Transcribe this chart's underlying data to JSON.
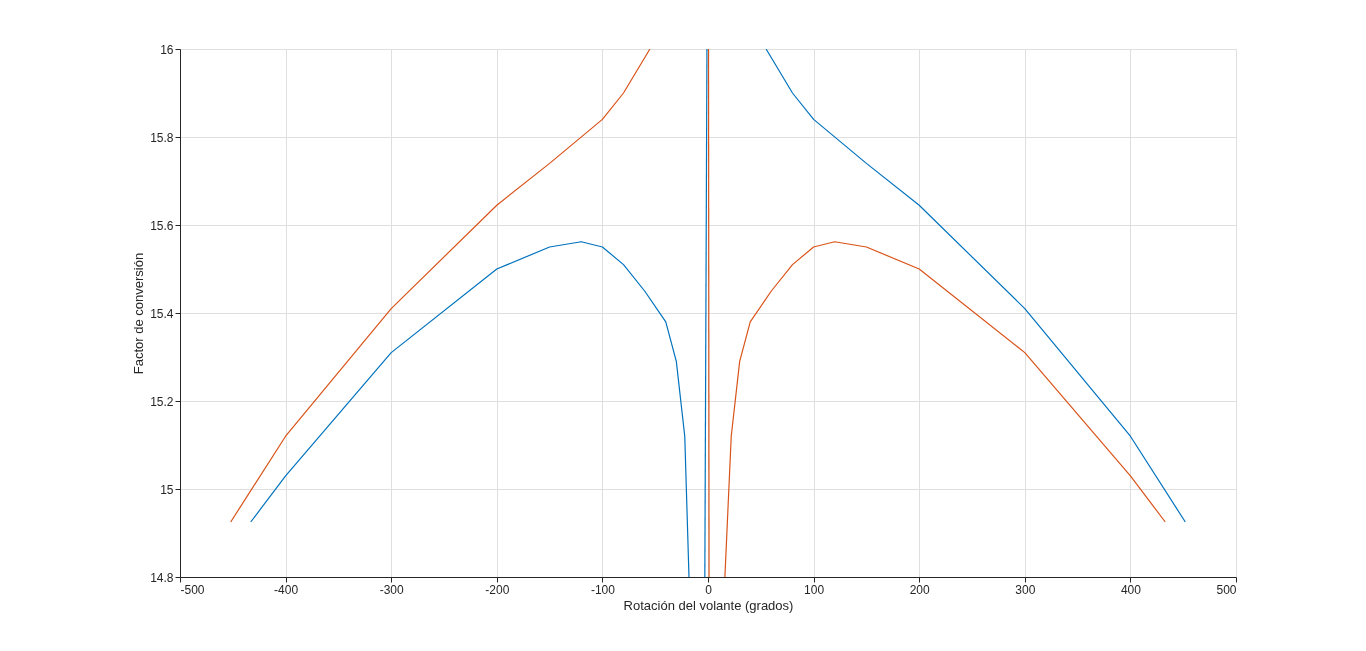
{
  "chart_data": {
    "type": "line",
    "xlabel": "Rotación del volante (grados)",
    "ylabel": "Factor de conversión",
    "xlim": [
      -500,
      500
    ],
    "ylim": [
      14.8,
      16
    ],
    "xticks": [
      -500,
      -400,
      -300,
      -200,
      -100,
      0,
      100,
      200,
      300,
      400,
      500
    ],
    "yticks": [
      14.8,
      15,
      15.2,
      15.4,
      15.6,
      15.8,
      16
    ],
    "grid": true,
    "legend": false,
    "marker": "none",
    "line_style": "solid",
    "series": [
      {
        "color": "#0072bd",
        "x": [
          -433,
          -400,
          -300,
          -200,
          -150,
          -120,
          -100,
          -80,
          -60,
          -40,
          -30,
          -22,
          -18,
          null,
          -3,
          -1,
          null,
          55,
          60,
          80,
          100,
          150,
          200,
          300,
          400,
          452
        ],
        "values": [
          14.925,
          15.03,
          15.31,
          15.5,
          15.55,
          15.562,
          15.55,
          15.51,
          15.45,
          15.38,
          15.29,
          15.12,
          14.8,
          null,
          14.8,
          16,
          null,
          16,
          15.98,
          15.9,
          15.84,
          15.74,
          15.645,
          15.41,
          15.12,
          14.925
        ]
      },
      {
        "color": "#d95319",
        "x": [
          -452,
          -400,
          -300,
          -200,
          -150,
          -100,
          -80,
          -60,
          -55,
          null,
          0.5,
          1,
          null,
          16,
          22,
          30,
          40,
          60,
          80,
          100,
          120,
          150,
          200,
          300,
          400,
          433
        ],
        "values": [
          14.925,
          15.12,
          15.41,
          15.645,
          15.74,
          15.84,
          15.9,
          15.98,
          16,
          null,
          16,
          14.8,
          null,
          14.8,
          15.12,
          15.29,
          15.38,
          15.45,
          15.51,
          15.55,
          15.562,
          15.55,
          15.5,
          15.31,
          15.03,
          14.925
        ]
      }
    ]
  }
}
